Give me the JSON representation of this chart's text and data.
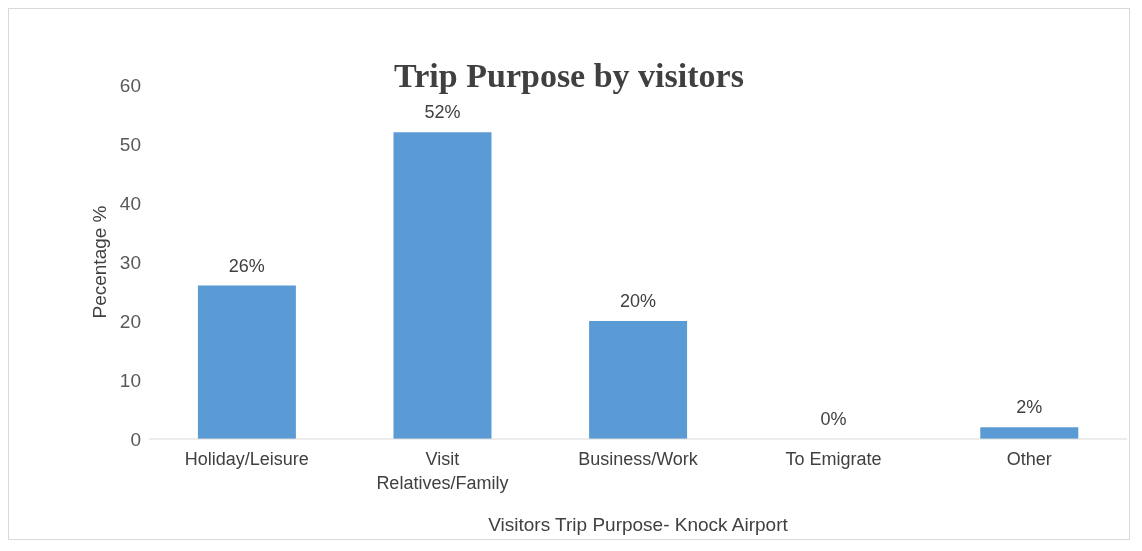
{
  "chart_data": {
    "type": "bar",
    "title": "Trip Purpose by visitors",
    "xlabel": "Visitors Trip Purpose- Knock Airport",
    "ylabel": "Pecentage %",
    "categories": [
      "Holiday/Leisure",
      "Visit Relatives/Family",
      "Business/Work",
      "To Emigrate",
      "Other"
    ],
    "values": [
      26,
      52,
      20,
      0,
      2
    ],
    "value_labels": [
      "26%",
      "52%",
      "20%",
      "0%",
      "2%"
    ],
    "color": "#5b9bd5",
    "ylim": [
      0,
      60
    ],
    "yticks": [
      0,
      10,
      20,
      30,
      40,
      50,
      60
    ],
    "grid": false,
    "legend": false
  }
}
